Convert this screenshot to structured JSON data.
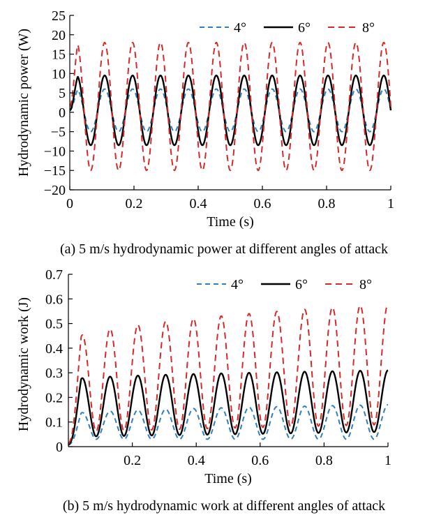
{
  "figures": [
    {
      "caption": "(a) 5 m/s hydrodynamic power at different angles of attack",
      "xlabel": "Time (s)",
      "ylabel": "Hydrodynamic power (W)",
      "x_ticks": [
        "0",
        "0.2",
        "0.4",
        "0.6",
        "0.8",
        "1"
      ],
      "y_ticks": [
        "−20",
        "−15",
        "−10",
        "−5",
        "0",
        "5",
        "10",
        "15",
        "20",
        "25"
      ],
      "legend": [
        "4°",
        "6°",
        "8°"
      ]
    },
    {
      "caption": "(b) 5 m/s hydrodynamic work at different angles of attack",
      "xlabel": "Time (s)",
      "ylabel": "Hydrodynamic work (J)",
      "x_ticks": [
        "0.2",
        "0.4",
        "0.6",
        "0.8",
        "1"
      ],
      "y_ticks": [
        "0",
        "0.1",
        "0.2",
        "0.3",
        "0.4",
        "0.5",
        "0.6",
        "0.7"
      ],
      "legend": [
        "4°",
        "6°",
        "8°"
      ]
    }
  ],
  "colors": {
    "s4": "#2f7fc1",
    "s6": "#000000",
    "s8": "#d42a2a"
  },
  "chart_data": [
    {
      "type": "line",
      "title": "(a) 5 m/s hydrodynamic power at different angles of attack",
      "xlabel": "Time (s)",
      "ylabel": "Hydrodynamic power (W)",
      "xlim": [
        0,
        1
      ],
      "ylim": [
        -20,
        25
      ],
      "frequency_hz": 11.5,
      "series": [
        {
          "name": "4°",
          "style": "dashed",
          "mean": 0.5,
          "amplitude": 5.5,
          "start": 0.5
        },
        {
          "name": "6°",
          "style": "solid",
          "mean": 0.5,
          "amplitude": 9.0,
          "start": 0.5
        },
        {
          "name": "8°",
          "style": "dashed",
          "mean": 1.5,
          "amplitude": 16.5,
          "start": 1.5
        }
      ],
      "legend": [
        "4°",
        "6°",
        "8°"
      ],
      "legend_position": "top-right"
    },
    {
      "type": "line",
      "title": "(b) 5 m/s hydrodynamic work at different angles of attack",
      "xlabel": "Time (s)",
      "ylabel": "Hydrodynamic work (J)",
      "xlim": [
        0,
        1
      ],
      "ylim": [
        0,
        0.7
      ],
      "frequency_hz": 11.5,
      "series": [
        {
          "name": "4°",
          "style": "dashed",
          "min_start": 0.03,
          "min_end": 0.03,
          "peak_start": 0.13,
          "peak_end": 0.17
        },
        {
          "name": "6°",
          "style": "solid",
          "min_start": 0.04,
          "min_end": 0.06,
          "peak_start": 0.27,
          "peak_end": 0.31
        },
        {
          "name": "8°",
          "style": "dashed",
          "min_start": 0.06,
          "min_end": 0.09,
          "peak_start": 0.42,
          "peak_end": 0.58
        }
      ],
      "legend": [
        "4°",
        "6°",
        "8°"
      ],
      "legend_position": "top-right"
    }
  ]
}
